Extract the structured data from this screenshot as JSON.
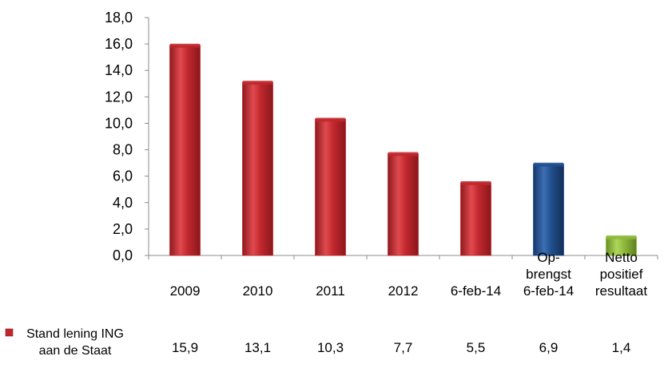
{
  "chart_data": {
    "type": "bar",
    "categories": [
      [
        "2009"
      ],
      [
        "2010"
      ],
      [
        "2011"
      ],
      [
        "2012"
      ],
      [
        "6-feb-14"
      ],
      [
        "Op-",
        "brengst",
        "6-feb-14"
      ],
      [
        "Netto",
        "positief",
        "resultaat"
      ]
    ],
    "series": [
      {
        "name": "Stand lening ING aan de Staat",
        "name_lines": [
          "Stand lening ING",
          "aan de Staat"
        ],
        "values": [
          15.9,
          13.1,
          10.3,
          7.7,
          5.5,
          6.9,
          1.4
        ],
        "value_labels": [
          "15,9",
          "13,1",
          "10,3",
          "7,7",
          "5,5",
          "6,9",
          "1,4"
        ],
        "bar_colors": [
          "#C0272D",
          "#C0272D",
          "#C0272D",
          "#C0272D",
          "#C0272D",
          "#1F4E8C",
          "#8DB83A"
        ]
      }
    ],
    "yticks": [
      "0,0",
      "2,0",
      "4,0",
      "6,0",
      "8,0",
      "10,0",
      "12,0",
      "14,0",
      "16,0",
      "18,0"
    ],
    "ylim": [
      0,
      18
    ],
    "grid": false,
    "legend": "data-table-left",
    "colors": {
      "red": "#C0272D",
      "blue": "#1F4E8C",
      "green": "#8DB83A",
      "axis": "#8C8C8C"
    }
  }
}
